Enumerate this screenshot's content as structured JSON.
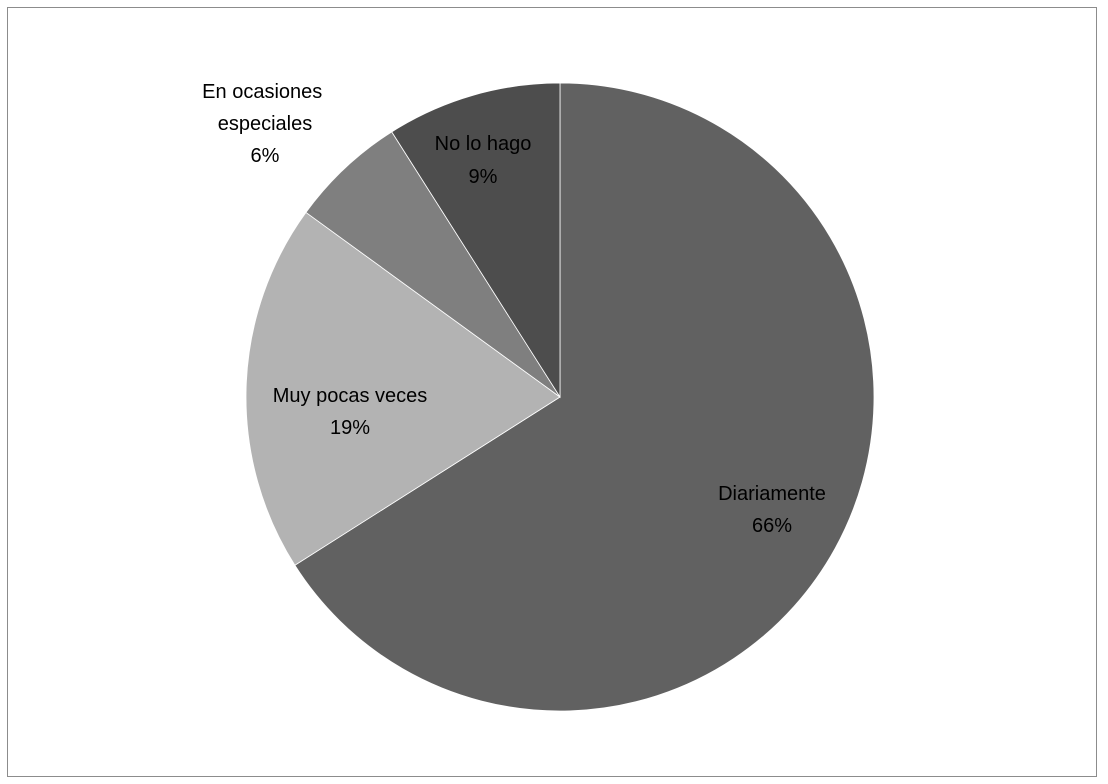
{
  "chart_data": {
    "type": "pie",
    "title": "",
    "start": "top",
    "direction": "clockwise",
    "legend": "none",
    "slices": [
      {
        "label": "Diariamente",
        "value": 66,
        "value_label": "66%",
        "color": "#616161"
      },
      {
        "label": "Muy pocas veces",
        "value": 19,
        "value_label": "19%",
        "color": "#b3b3b3"
      },
      {
        "label": "En ocasiones especiales",
        "value": 6,
        "value_label": "6%",
        "color": "#7f7f7f"
      },
      {
        "label": "No lo hago",
        "value": 9,
        "value_label": "9%",
        "color": "#4d4d4d"
      }
    ]
  }
}
